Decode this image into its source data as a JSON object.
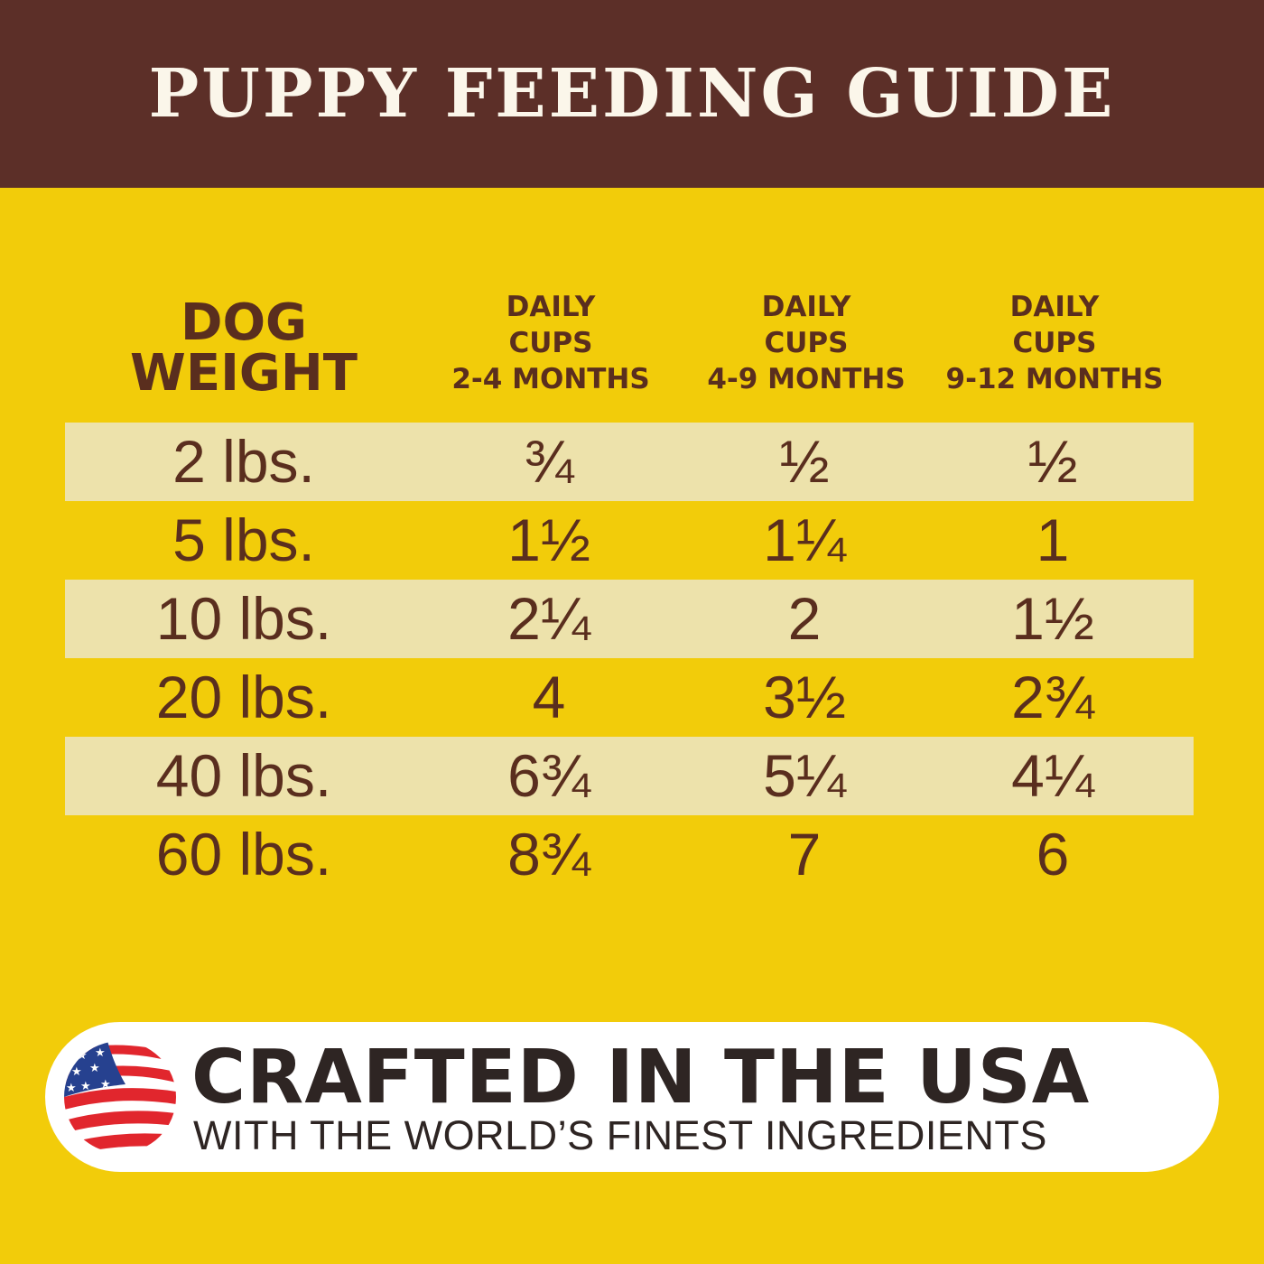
{
  "title": "PUPPY FEEDING GUIDE",
  "table": {
    "headers": [
      [
        "DOG",
        "WEIGHT"
      ],
      [
        "DAILY",
        "CUPS",
        "2-4 MONTHS"
      ],
      [
        "DAILY",
        "CUPS",
        "4-9 MONTHS"
      ],
      [
        "DAILY",
        "CUPS",
        "9-12 MONTHS"
      ]
    ],
    "rows": [
      [
        "2 lbs.",
        "¾",
        "½",
        "½"
      ],
      [
        "5 lbs.",
        "1½",
        "1¼",
        "1"
      ],
      [
        "10 lbs.",
        "2¼",
        "2",
        "1½"
      ],
      [
        "20 lbs.",
        "4",
        "3½",
        "2¾"
      ],
      [
        "40 lbs.",
        "6¾",
        "5¼",
        "4¼"
      ],
      [
        "60 lbs.",
        "8¾",
        "7",
        "6"
      ]
    ]
  },
  "banner": {
    "headline": "CRAFTED IN THE USA",
    "subline": "WITH THE WORLD’S FINEST INGREDIENTS",
    "icon": "us-flag-icon"
  },
  "colors": {
    "header_bg": "#5c2f28",
    "background": "#f2cc0a",
    "stripe": "#ede2ab",
    "text": "#5a2e1e"
  }
}
